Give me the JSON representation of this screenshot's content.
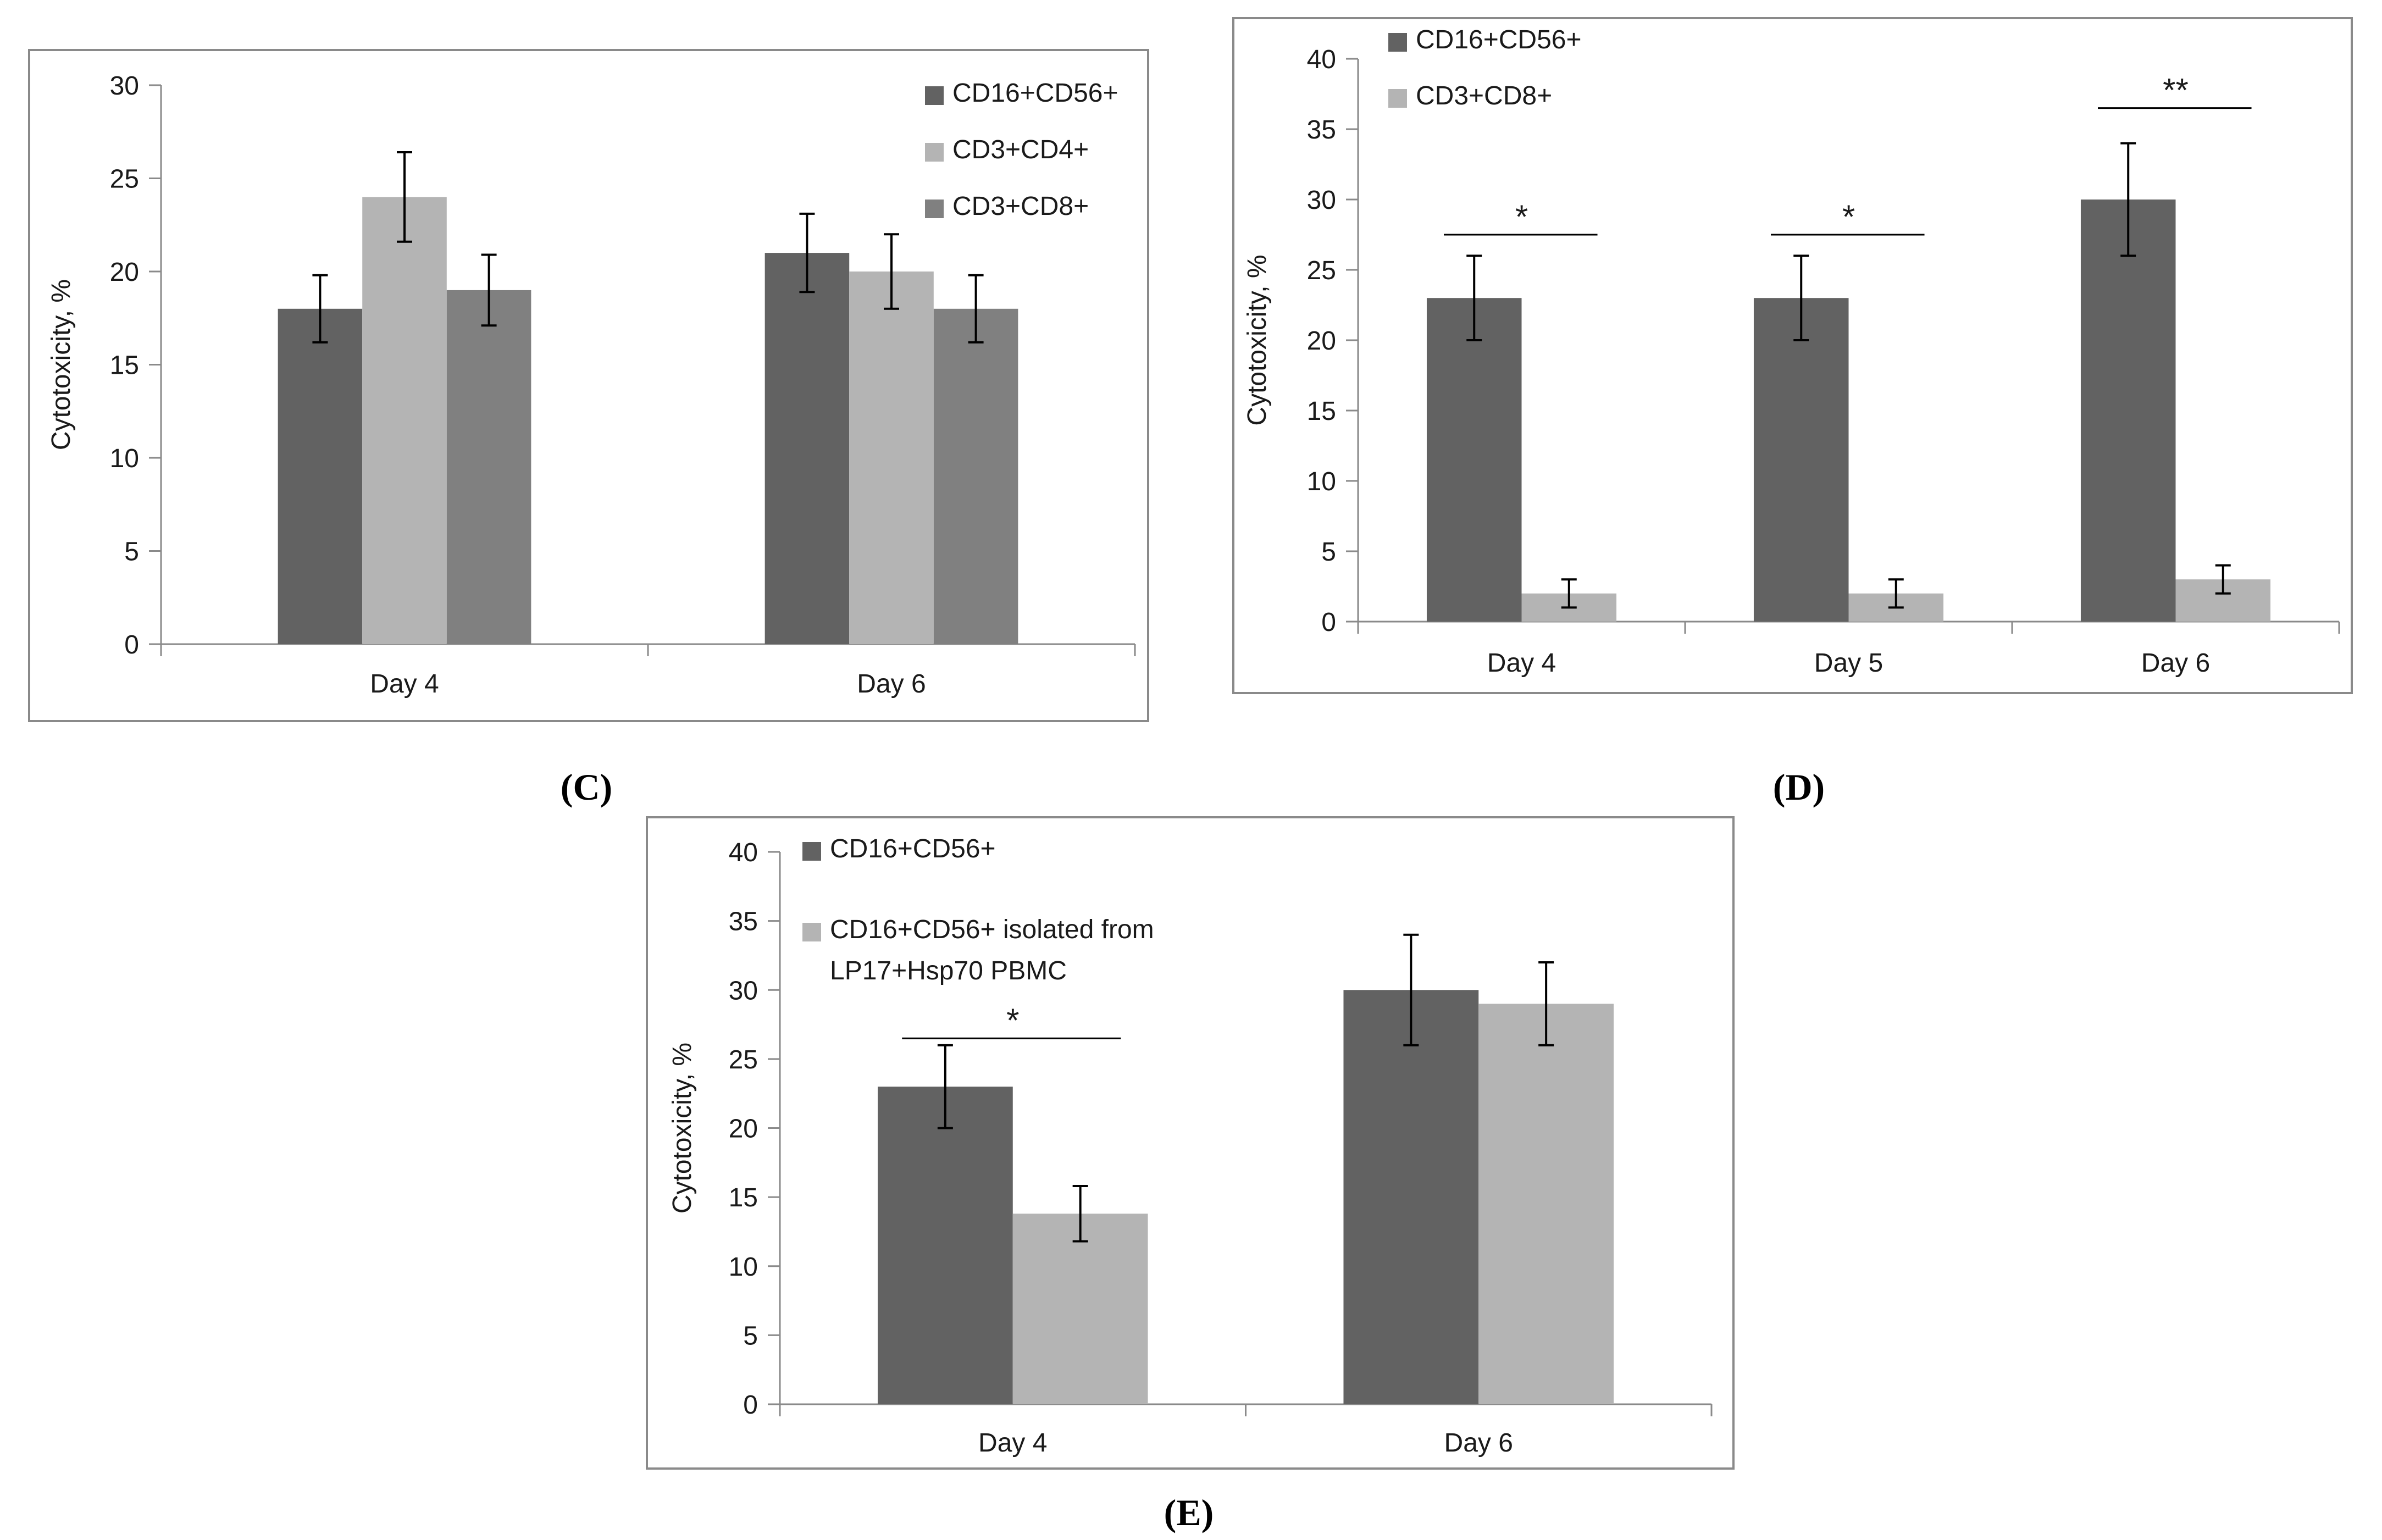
{
  "figure": {
    "panel_labels": [
      "C",
      "D",
      "E"
    ]
  },
  "chart_data": [
    {
      "panel": "C",
      "type": "bar",
      "title": "",
      "xlabel": "",
      "ylabel": "Cytotoxicity, %",
      "ylim": [
        0,
        30
      ],
      "ytick_step": 5,
      "grid": false,
      "legend_position": "top-right",
      "categories": [
        "Day 4",
        "Day 6"
      ],
      "series": [
        {
          "name": "CD16+CD56+",
          "color": "#626262",
          "values": [
            18,
            21
          ],
          "errors": [
            1.8,
            2.1
          ]
        },
        {
          "name": "CD3+CD4+",
          "color": "#b4b4b4",
          "values": [
            24,
            20
          ],
          "errors": [
            2.4,
            2.0
          ]
        },
        {
          "name": "CD3+CD8+",
          "color": "#808080",
          "values": [
            19,
            18
          ],
          "errors": [
            1.9,
            1.8
          ]
        }
      ],
      "annotations": []
    },
    {
      "panel": "D",
      "type": "bar",
      "title": "",
      "xlabel": "",
      "ylabel": "Cytotoxicity, %",
      "ylim": [
        0,
        40
      ],
      "ytick_step": 5,
      "grid": false,
      "legend_position": "top-left",
      "categories": [
        "Day 4",
        "Day 5",
        "Day 6"
      ],
      "series": [
        {
          "name": "CD16+CD56+",
          "color": "#626262",
          "values": [
            23,
            23,
            30
          ],
          "errors": [
            3,
            3,
            4
          ]
        },
        {
          "name": "CD3+CD8+",
          "color": "#b4b4b4",
          "values": [
            2,
            2,
            3
          ],
          "errors": [
            1,
            1,
            1
          ]
        }
      ],
      "annotations": [
        {
          "category": 0,
          "text": "*",
          "level": 27.5
        },
        {
          "category": 1,
          "text": "*",
          "level": 27.5
        },
        {
          "category": 2,
          "text": "**",
          "level": 36.5
        }
      ]
    },
    {
      "panel": "E",
      "type": "bar",
      "title": "",
      "xlabel": "",
      "ylabel": "Cytotoxicity, %",
      "ylim": [
        0,
        40
      ],
      "ytick_step": 5,
      "grid": false,
      "legend_position": "top-left",
      "categories": [
        "Day 4",
        "Day 6"
      ],
      "series": [
        {
          "name": "CD16+CD56+",
          "color": "#626262",
          "values": [
            23,
            30
          ],
          "errors": [
            3,
            4
          ]
        },
        {
          "name": "CD16+CD56+ isolated from LP17+Hsp70 PBMC",
          "legend_lines": [
            "CD16+CD56+ isolated from",
            "LP17+Hsp70 PBMC"
          ],
          "color": "#b4b4b4",
          "values": [
            13.8,
            29
          ],
          "errors": [
            2,
            3
          ]
        }
      ],
      "annotations": [
        {
          "category": 0,
          "text": "*",
          "level": 26.5
        }
      ]
    }
  ]
}
